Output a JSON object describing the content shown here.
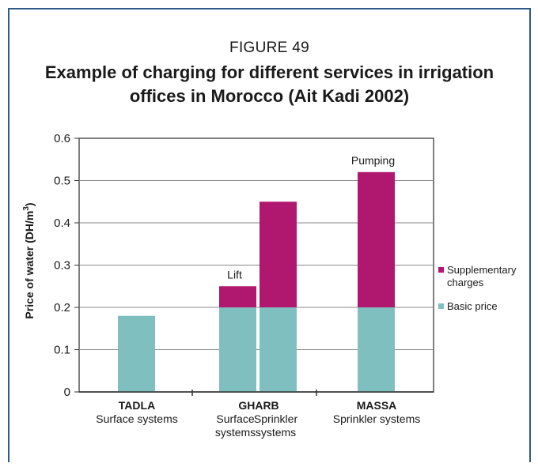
{
  "figure_label": "FIGURE 49",
  "title_line1": "Example of charging for different services in irrigation",
  "title_line2": "offices in Morocco (Ait Kadi 2002)",
  "colors": {
    "basic": "#7fbfbf",
    "supplementary": "#b0176f",
    "frame": "#2f5a86"
  },
  "chart_data": {
    "type": "bar",
    "stacked": true,
    "ylabel": "Price of water (DH/m³)",
    "ylabel_main": "Price of water (DH/m",
    "ylabel_sup": "3",
    "ylabel_tail": ")",
    "ylim": [
      0,
      0.6
    ],
    "yticks": [
      "0",
      "0.1",
      "0.2",
      "0.3",
      "0.4",
      "0.5",
      "0.6"
    ],
    "yticks_values": [
      0,
      0.1,
      0.2,
      0.3,
      0.4,
      0.5,
      0.6
    ],
    "grid": true,
    "legend_position": "right",
    "groups": [
      {
        "name": "TADLA",
        "subtitle": "Surface systems"
      },
      {
        "name": "GHARB",
        "subtitle": ""
      },
      {
        "name": "MASSA",
        "subtitle": "Sprinkler systems"
      }
    ],
    "bars": [
      {
        "group": "TADLA",
        "label1": "",
        "label2": "",
        "basic": 0.18,
        "supplementary": 0,
        "annotation": ""
      },
      {
        "group": "GHARB",
        "label1": "Surface",
        "label2": "systems",
        "basic": 0.2,
        "supplementary": 0.05,
        "annotation": "Lift"
      },
      {
        "group": "GHARB",
        "label1": "Sprinkler",
        "label2": "systems",
        "basic": 0.2,
        "supplementary": 0.25,
        "annotation": ""
      },
      {
        "group": "MASSA",
        "label1": "",
        "label2": "",
        "basic": 0.2,
        "supplementary": 0.32,
        "annotation": "Pumping"
      }
    ],
    "series": [
      {
        "name": "Basic price",
        "values": [
          0.18,
          0.2,
          0.2,
          0.2
        ]
      },
      {
        "name": "Supplementary charges",
        "values": [
          0,
          0.05,
          0.25,
          0.32
        ]
      }
    ],
    "legend": [
      {
        "series": "supplementary",
        "line1": "Supplementary",
        "line2": "charges"
      },
      {
        "series": "basic",
        "line1": "Basic price",
        "line2": ""
      }
    ]
  }
}
